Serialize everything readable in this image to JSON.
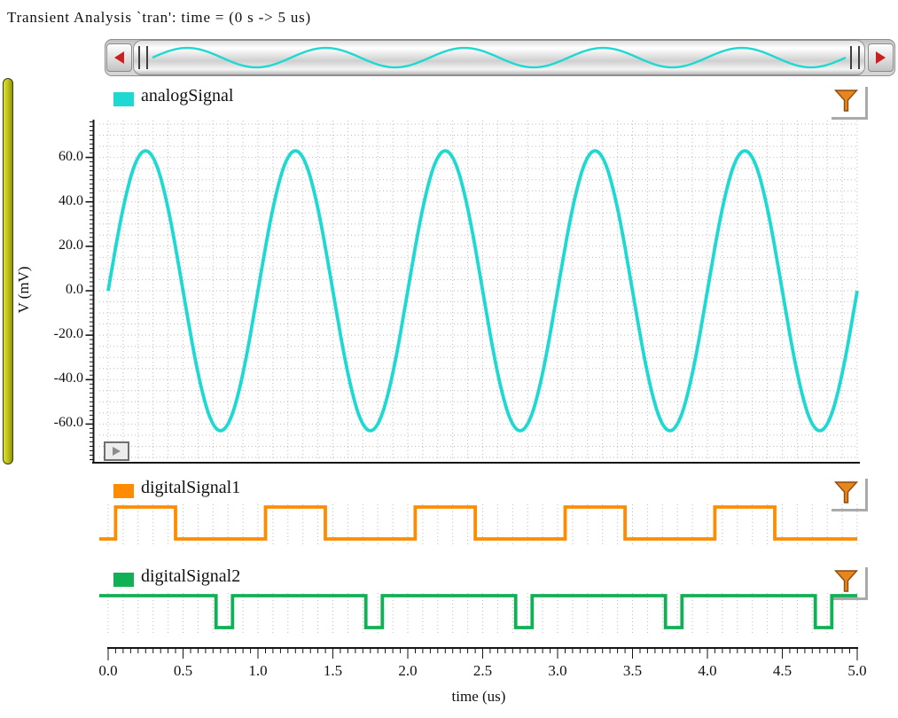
{
  "window": {
    "title": "Transient Analysis `tran': time = (0 s -> 5 us)"
  },
  "colors": {
    "analog_trace": "#1ed9d2",
    "digital1_trace": "#ff8c00",
    "digital2_trace": "#10b155",
    "grid_dots": "#bcbcbc",
    "axis": "#151515",
    "scroll_arrow": "#cc2020",
    "funnel_fill": "#e8851c",
    "funnel_outline": "#8a4d0f",
    "strip_selector": "#b9bd16"
  },
  "scrollbar": {
    "left_arrow_icon": "scroll-left-arrow",
    "right_arrow_icon": "scroll-right-arrow",
    "preview_of": "analogSignal"
  },
  "panels": [
    {
      "name": "analogSignal",
      "legend_color": "#1ed9d2",
      "filter_icon": "funnel-icon"
    },
    {
      "name": "digitalSignal1",
      "legend_color": "#ff8c00",
      "filter_icon": "funnel-icon"
    },
    {
      "name": "digitalSignal2",
      "legend_color": "#10b155",
      "filter_icon": "funnel-icon"
    }
  ],
  "y_axis": {
    "label": "V (mV)",
    "min": -77,
    "max": 77,
    "minor_step": 2,
    "major_step": 20,
    "tick_labels": [
      "60.0",
      "40.0",
      "20.0",
      "0.0",
      "-20.0",
      "-40.0",
      "-60.0"
    ],
    "tick_values": [
      60,
      40,
      20,
      0,
      -20,
      -40,
      -60
    ]
  },
  "x_axis": {
    "label": "time (us)",
    "min": 0,
    "max": 5,
    "minor_step": 0.05,
    "major_step": 0.5,
    "tick_labels": [
      "0.0",
      "0.5",
      "1.0",
      "1.5",
      "2.0",
      "2.5",
      "3.0",
      "3.5",
      "4.0",
      "4.5",
      "5.0"
    ],
    "tick_values": [
      0,
      0.5,
      1,
      1.5,
      2,
      2.5,
      3,
      3.5,
      4,
      4.5,
      5
    ]
  },
  "chart_data": [
    {
      "type": "line",
      "name": "analogSignal",
      "color": "#1ed9d2",
      "xlabel": "time (us)",
      "ylabel": "V (mV)",
      "x_range_us": [
        0,
        5
      ],
      "y_range_mV": [
        -77,
        77
      ],
      "grid": "dotted",
      "waveform": {
        "kind": "sine",
        "amplitude_mV": 63,
        "period_us": 1,
        "offset_mV": 0,
        "phase_deg": 0,
        "cycles_visible": 5
      }
    },
    {
      "type": "digital",
      "name": "digitalSignal1",
      "color": "#ff8c00",
      "initial_level": 0,
      "transitions_us": [
        0.05,
        0.45,
        1.05,
        1.45,
        2.05,
        2.45,
        3.05,
        3.45,
        4.05,
        4.45
      ],
      "final_level": 0
    },
    {
      "type": "digital",
      "name": "digitalSignal2",
      "color": "#10b155",
      "initial_level": 1,
      "transitions_us": [
        0.72,
        0.83,
        1.72,
        1.83,
        2.72,
        2.83,
        3.72,
        3.83,
        4.72,
        4.83
      ],
      "final_level": 1
    }
  ]
}
